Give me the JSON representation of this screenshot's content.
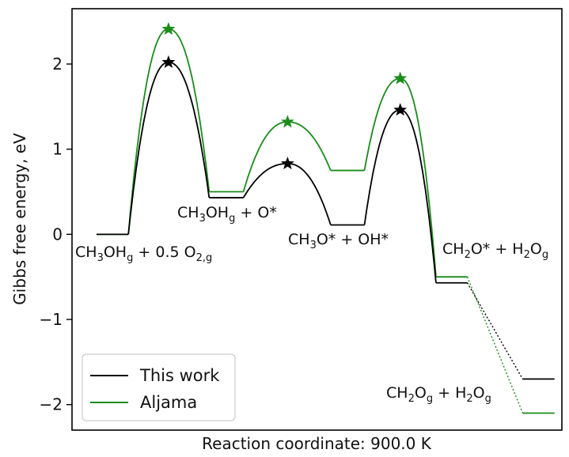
{
  "chart_data": {
    "type": "line",
    "xlabel": "Reaction coordinate: 900.0 K",
    "ylabel": "Gibbs free energy, eV",
    "ylim": [
      -2.3,
      2.65
    ],
    "yticks": [
      -2,
      -1,
      0,
      1,
      2
    ],
    "xlim": [
      0,
      10
    ],
    "grid": false,
    "legend_position": "bottom-left",
    "colors": {
      "This work": "#000000",
      "Aljama": "#1a8c1a"
    },
    "species_labels": [
      {
        "id": "s0",
        "parts": [
          [
            "CH",
            ""
          ],
          [
            "3",
            "sub"
          ],
          [
            "OH",
            ""
          ],
          [
            "g",
            "sub"
          ],
          [
            " + 0.5 O",
            ""
          ],
          [
            "2,g",
            "sub"
          ]
        ]
      },
      {
        "id": "s1",
        "parts": [
          [
            "CH",
            ""
          ],
          [
            "3",
            "sub"
          ],
          [
            "OH",
            ""
          ],
          [
            "g",
            "sub"
          ],
          [
            " + O*",
            ""
          ]
        ]
      },
      {
        "id": "s2",
        "parts": [
          [
            "CH",
            ""
          ],
          [
            "3",
            "sub"
          ],
          [
            "O* + OH*",
            ""
          ]
        ]
      },
      {
        "id": "s3",
        "parts": [
          [
            "CH",
            ""
          ],
          [
            "2",
            "sub"
          ],
          [
            "O* + H",
            ""
          ],
          [
            "2",
            "sub"
          ],
          [
            "O",
            ""
          ],
          [
            "g",
            "sub"
          ]
        ]
      },
      {
        "id": "s4",
        "parts": [
          [
            "CH",
            ""
          ],
          [
            "2",
            "sub"
          ],
          [
            "O",
            ""
          ],
          [
            "g",
            "sub"
          ],
          [
            " + H",
            ""
          ],
          [
            "2",
            "sub"
          ],
          [
            "O",
            ""
          ],
          [
            "g",
            "sub"
          ]
        ]
      }
    ],
    "series": [
      {
        "name": "This work",
        "states": [
          0.0,
          0.43,
          0.11,
          -0.57,
          -1.7
        ],
        "transition_states": [
          2.02,
          0.83,
          1.46
        ]
      },
      {
        "name": "Aljama",
        "states": [
          0.0,
          0.5,
          0.75,
          -0.5,
          -2.1
        ],
        "transition_states": [
          2.41,
          1.32,
          1.83
        ]
      }
    ]
  }
}
